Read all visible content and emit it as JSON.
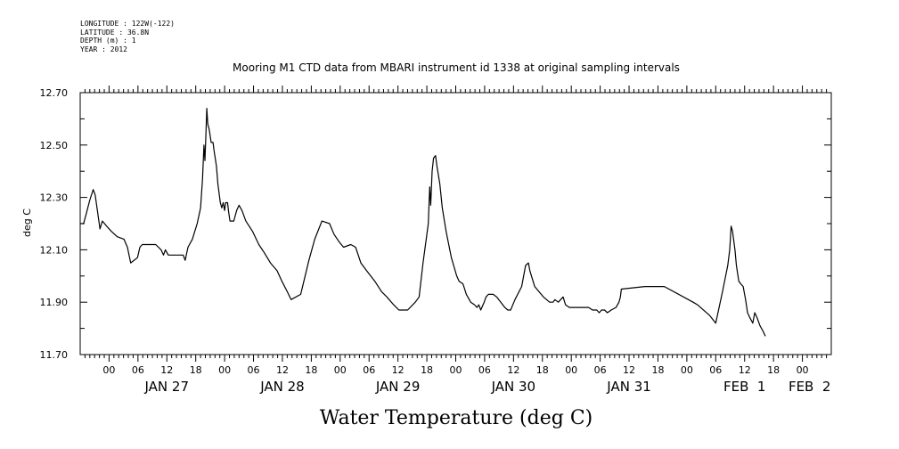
{
  "header": {
    "longitude": "LONGITUDE : 122W(-122)",
    "latitude": "LATITUDE : 36.8N",
    "depth": "DEPTH (m) : 1",
    "year": "YEAR : 2012"
  },
  "chart_data": {
    "type": "line",
    "title": "Mooring M1 CTD data from MBARI instrument id 1338 at original sampling intervals",
    "xlabel": "Water Temperature (deg C)",
    "ylabel": "deg C",
    "ylim": [
      11.7,
      12.7
    ],
    "yticks": [
      "11.70",
      "11.90",
      "12.10",
      "12.30",
      "12.50",
      "12.70"
    ],
    "x_unit": "hours since Jan 26 2012 18:00",
    "xlim": [
      0,
      156
    ],
    "hour_ticks": [
      {
        "x": 6,
        "label": "00"
      },
      {
        "x": 12,
        "label": "06"
      },
      {
        "x": 18,
        "label": "12"
      },
      {
        "x": 24,
        "label": "18"
      },
      {
        "x": 30,
        "label": "00"
      },
      {
        "x": 36,
        "label": "06"
      },
      {
        "x": 42,
        "label": "12"
      },
      {
        "x": 48,
        "label": "18"
      },
      {
        "x": 54,
        "label": "00"
      },
      {
        "x": 60,
        "label": "06"
      },
      {
        "x": 66,
        "label": "12"
      },
      {
        "x": 72,
        "label": "18"
      },
      {
        "x": 78,
        "label": "00"
      },
      {
        "x": 84,
        "label": "06"
      },
      {
        "x": 90,
        "label": "12"
      },
      {
        "x": 96,
        "label": "18"
      },
      {
        "x": 102,
        "label": "00"
      },
      {
        "x": 108,
        "label": "06"
      },
      {
        "x": 114,
        "label": "12"
      },
      {
        "x": 120,
        "label": "18"
      },
      {
        "x": 126,
        "label": "00"
      },
      {
        "x": 132,
        "label": "06"
      },
      {
        "x": 138,
        "label": "12"
      },
      {
        "x": 144,
        "label": "18"
      },
      {
        "x": 150,
        "label": "00"
      }
    ],
    "day_labels": [
      {
        "x": 18,
        "label": "JAN 27"
      },
      {
        "x": 42,
        "label": "JAN 28"
      },
      {
        "x": 66,
        "label": "JAN 29"
      },
      {
        "x": 90,
        "label": "JAN 30"
      },
      {
        "x": 114,
        "label": "JAN 31"
      },
      {
        "x": 138,
        "label": "FEB  1"
      },
      {
        "x": 151.5,
        "label": "FEB  2"
      }
    ],
    "series": [
      {
        "color": "#000000",
        "points": [
          [
            0,
            12.2
          ],
          [
            0.7,
            12.2
          ],
          [
            1.3,
            12.24
          ],
          [
            2,
            12.29
          ],
          [
            2.7,
            12.33
          ],
          [
            3.1,
            12.31
          ],
          [
            3.5,
            12.26
          ],
          [
            4.1,
            12.18
          ],
          [
            4.6,
            12.21
          ],
          [
            5.5,
            12.19
          ],
          [
            6.5,
            12.17
          ],
          [
            7.7,
            12.15
          ],
          [
            9.1,
            12.14
          ],
          [
            9.8,
            12.11
          ],
          [
            10.5,
            12.05
          ],
          [
            11.9,
            12.07
          ],
          [
            12.4,
            12.11
          ],
          [
            12.9,
            12.12
          ],
          [
            13.9,
            12.12
          ],
          [
            15.7,
            12.12
          ],
          [
            16.8,
            12.1
          ],
          [
            17.3,
            12.08
          ],
          [
            17.7,
            12.1
          ],
          [
            18.3,
            12.08
          ],
          [
            21.4,
            12.08
          ],
          [
            21.8,
            12.06
          ],
          [
            22.4,
            12.11
          ],
          [
            23.3,
            12.14
          ],
          [
            24.3,
            12.2
          ],
          [
            25.0,
            12.26
          ],
          [
            25.4,
            12.37
          ],
          [
            25.6,
            12.45
          ],
          [
            25.7,
            12.5
          ],
          [
            25.9,
            12.44
          ],
          [
            26.1,
            12.53
          ],
          [
            26.3,
            12.64
          ],
          [
            26.5,
            12.58
          ],
          [
            26.8,
            12.56
          ],
          [
            27.2,
            12.51
          ],
          [
            27.6,
            12.51
          ],
          [
            27.8,
            12.48
          ],
          [
            28.3,
            12.42
          ],
          [
            28.6,
            12.35
          ],
          [
            29.1,
            12.28
          ],
          [
            29.4,
            12.26
          ],
          [
            29.7,
            12.28
          ],
          [
            30.0,
            12.25
          ],
          [
            30.2,
            12.28
          ],
          [
            30.6,
            12.28
          ],
          [
            30.8,
            12.25
          ],
          [
            31.1,
            12.21
          ],
          [
            31.9,
            12.21
          ],
          [
            32.5,
            12.25
          ],
          [
            33.0,
            12.27
          ],
          [
            33.6,
            12.25
          ],
          [
            34.4,
            12.21
          ],
          [
            35.8,
            12.17
          ],
          [
            37.1,
            12.12
          ],
          [
            38.2,
            12.09
          ],
          [
            39.5,
            12.05
          ],
          [
            40.9,
            12.02
          ],
          [
            41.9,
            11.98
          ],
          [
            43.0,
            11.94
          ],
          [
            43.8,
            11.91
          ],
          [
            45.8,
            11.93
          ],
          [
            47.5,
            12.06
          ],
          [
            48.7,
            12.14
          ],
          [
            50.2,
            12.21
          ],
          [
            51.8,
            12.2
          ],
          [
            52.7,
            12.16
          ],
          [
            53.8,
            12.13
          ],
          [
            54.7,
            12.11
          ],
          [
            56.2,
            12.12
          ],
          [
            57.2,
            12.11
          ],
          [
            58.3,
            12.05
          ],
          [
            59.5,
            12.02
          ],
          [
            61.2,
            11.98
          ],
          [
            62.6,
            11.94
          ],
          [
            63.7,
            11.92
          ],
          [
            65.1,
            11.89
          ],
          [
            66.2,
            11.87
          ],
          [
            68.0,
            11.87
          ],
          [
            69.6,
            11.9
          ],
          [
            70.4,
            11.92
          ],
          [
            71.2,
            12.05
          ],
          [
            72.3,
            12.2
          ],
          [
            72.6,
            12.34
          ],
          [
            72.8,
            12.27
          ],
          [
            73.1,
            12.4
          ],
          [
            73.4,
            12.45
          ],
          [
            73.8,
            12.46
          ],
          [
            74.1,
            12.42
          ],
          [
            74.7,
            12.35
          ],
          [
            75.2,
            12.26
          ],
          [
            76.0,
            12.17
          ],
          [
            77.1,
            12.07
          ],
          [
            78.2,
            12.0
          ],
          [
            78.7,
            11.98
          ],
          [
            79.5,
            11.97
          ],
          [
            80.2,
            11.93
          ],
          [
            81.1,
            11.9
          ],
          [
            81.9,
            11.89
          ],
          [
            82.4,
            11.88
          ],
          [
            82.8,
            11.89
          ],
          [
            83.2,
            11.87
          ],
          [
            83.9,
            11.9
          ],
          [
            84.3,
            11.92
          ],
          [
            84.8,
            11.93
          ],
          [
            85.8,
            11.93
          ],
          [
            86.5,
            11.92
          ],
          [
            88.2,
            11.88
          ],
          [
            88.8,
            11.87
          ],
          [
            89.4,
            11.87
          ],
          [
            90.3,
            11.91
          ],
          [
            91.7,
            11.96
          ],
          [
            92.5,
            12.04
          ],
          [
            93.1,
            12.05
          ],
          [
            93.4,
            12.02
          ],
          [
            94.4,
            11.96
          ],
          [
            96.2,
            11.92
          ],
          [
            97.5,
            11.9
          ],
          [
            98.2,
            11.9
          ],
          [
            98.6,
            11.91
          ],
          [
            99.3,
            11.9
          ],
          [
            100.3,
            11.92
          ],
          [
            100.8,
            11.89
          ],
          [
            101.6,
            11.88
          ],
          [
            105.6,
            11.88
          ],
          [
            106.4,
            11.87
          ],
          [
            107.3,
            11.87
          ],
          [
            107.8,
            11.86
          ],
          [
            108.3,
            11.87
          ],
          [
            108.9,
            11.87
          ],
          [
            109.5,
            11.86
          ],
          [
            110.3,
            11.87
          ],
          [
            111.3,
            11.88
          ],
          [
            111.9,
            11.9
          ],
          [
            112.2,
            11.92
          ],
          [
            112.4,
            11.95
          ],
          [
            117.3,
            11.96
          ],
          [
            121.3,
            11.96
          ],
          [
            127.3,
            11.9
          ],
          [
            128.2,
            11.89
          ],
          [
            130.7,
            11.85
          ],
          [
            132.0,
            11.82
          ],
          [
            133.4,
            11.94
          ],
          [
            134.5,
            12.04
          ],
          [
            134.9,
            12.1
          ],
          [
            135.2,
            12.19
          ],
          [
            135.5,
            12.17
          ],
          [
            136.0,
            12.1
          ],
          [
            136.3,
            12.04
          ],
          [
            136.8,
            11.98
          ],
          [
            137.2,
            11.97
          ],
          [
            137.7,
            11.96
          ],
          [
            138.2,
            11.91
          ],
          [
            138.6,
            11.86
          ],
          [
            139.1,
            11.84
          ],
          [
            139.7,
            11.82
          ],
          [
            140.1,
            11.86
          ],
          [
            140.6,
            11.84
          ],
          [
            141.2,
            11.81
          ],
          [
            141.8,
            11.79
          ],
          [
            142.3,
            11.77
          ]
        ]
      }
    ]
  }
}
